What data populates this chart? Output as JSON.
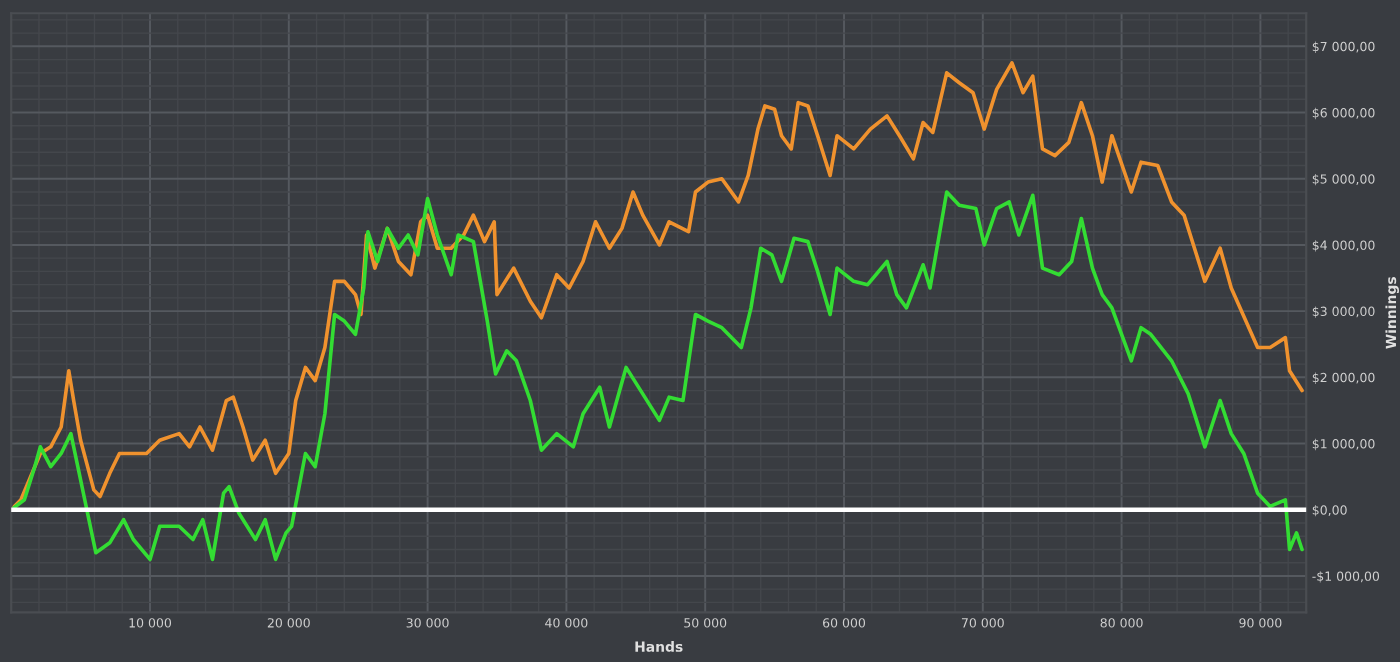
{
  "chart_data": {
    "type": "line",
    "xlabel": "Hands",
    "ylabel": "Winnings",
    "xlim": [
      0,
      93300
    ],
    "ylim": [
      -1550,
      7500
    ],
    "xticks": [
      {
        "value": 10000,
        "label": "10 000"
      },
      {
        "value": 20000,
        "label": "20 000"
      },
      {
        "value": 30000,
        "label": "30 000"
      },
      {
        "value": 40000,
        "label": "40 000"
      },
      {
        "value": 50000,
        "label": "50 000"
      },
      {
        "value": 60000,
        "label": "60 000"
      },
      {
        "value": 70000,
        "label": "70 000"
      },
      {
        "value": 80000,
        "label": "80 000"
      },
      {
        "value": 90000,
        "label": "90 000"
      }
    ],
    "yticks": [
      {
        "value": -1000,
        "label": "-$1 000,00"
      },
      {
        "value": 0,
        "label": "$0,00"
      },
      {
        "value": 1000,
        "label": "$1 000,00"
      },
      {
        "value": 2000,
        "label": "$2 000,00"
      },
      {
        "value": 3000,
        "label": "$3 000,00"
      },
      {
        "value": 4000,
        "label": "$4 000,00"
      },
      {
        "value": 5000,
        "label": "$5 000,00"
      },
      {
        "value": 6000,
        "label": "$6 000,00"
      },
      {
        "value": 7000,
        "label": "$7 000,00"
      }
    ],
    "grid": true,
    "marker": "none",
    "line_style": "solid",
    "ref_lines": [
      {
        "axis": "y",
        "value": 0,
        "color": "#ffffff"
      }
    ],
    "series": [
      {
        "color": "#f0922e",
        "x": [
          0,
          700,
          1700,
          2100,
          2850,
          3600,
          4150,
          4500,
          5000,
          5950,
          6400,
          7100,
          7800,
          9750,
          10700,
          12100,
          12850,
          13600,
          14500,
          15500,
          16000,
          16700,
          17400,
          18300,
          19050,
          20000,
          20500,
          21200,
          21900,
          22600,
          23300,
          24000,
          24800,
          25200,
          25600,
          26200,
          27100,
          27900,
          28800,
          29500,
          30000,
          30700,
          31700,
          32600,
          33300,
          34100,
          34800,
          35000,
          36200,
          37400,
          38200,
          39300,
          40200,
          41200,
          42100,
          43100,
          44000,
          44800,
          45500,
          46700,
          47400,
          48800,
          49300,
          50200,
          51200,
          52400,
          53100,
          53800,
          54300,
          55000,
          55500,
          56200,
          56700,
          57400,
          58100,
          59000,
          59500,
          60700,
          61900,
          63100,
          64000,
          65000,
          65700,
          66400,
          67400,
          68300,
          69300,
          70100,
          71000,
          72100,
          72900,
          73600,
          74300,
          75200,
          76200,
          77100,
          77900,
          78600,
          79300,
          80700,
          81400,
          82600,
          83600,
          84500,
          86000,
          87100,
          87900,
          89800,
          90700,
          91800,
          92100,
          93000
        ],
        "values": [
          0,
          150,
          650,
          850,
          950,
          1250,
          2100,
          1650,
          1050,
          300,
          200,
          550,
          850,
          850,
          1050,
          1150,
          950,
          1250,
          900,
          1650,
          1700,
          1250,
          750,
          1050,
          550,
          850,
          1650,
          2150,
          1950,
          2450,
          3450,
          3450,
          3250,
          2950,
          4150,
          3650,
          4250,
          3750,
          3550,
          4350,
          4450,
          3950,
          3950,
          4150,
          4450,
          4050,
          4350,
          3250,
          3650,
          3150,
          2900,
          3550,
          3350,
          3750,
          4350,
          3950,
          4250,
          4800,
          4450,
          4000,
          4350,
          4200,
          4800,
          4950,
          5000,
          4650,
          5050,
          5750,
          6100,
          6050,
          5650,
          5450,
          6150,
          6100,
          5650,
          5050,
          5650,
          5450,
          5750,
          5950,
          5650,
          5300,
          5850,
          5700,
          6600,
          6450,
          6300,
          5750,
          6350,
          6750,
          6300,
          6550,
          5450,
          5350,
          5550,
          6150,
          5650,
          4950,
          5650,
          4800,
          5250,
          5200,
          4650,
          4450,
          3450,
          3950,
          3350,
          2450,
          2450,
          2600,
          2100,
          1800
        ]
      },
      {
        "color": "#33dd33",
        "x": [
          0,
          950,
          1700,
          2100,
          2850,
          3600,
          4300,
          4800,
          5500,
          6100,
          7100,
          8100,
          8800,
          10000,
          10700,
          12100,
          13100,
          13800,
          14500,
          15300,
          15700,
          16400,
          17600,
          18300,
          19050,
          19800,
          20200,
          21200,
          21900,
          22600,
          23300,
          24000,
          24800,
          25400,
          25700,
          26400,
          27100,
          27900,
          28600,
          29300,
          30000,
          30700,
          31700,
          32200,
          33300,
          34300,
          34900,
          35700,
          36400,
          37400,
          38200,
          39300,
          40500,
          41200,
          42400,
          43100,
          44300,
          45500,
          46700,
          47400,
          48400,
          49300,
          50200,
          51200,
          52600,
          53300,
          54000,
          54800,
          55500,
          56400,
          57400,
          58100,
          59000,
          59500,
          60700,
          61700,
          63100,
          63800,
          64500,
          65700,
          66200,
          67400,
          68300,
          69500,
          70100,
          71000,
          71900,
          72600,
          73600,
          74300,
          75500,
          76400,
          77100,
          77900,
          78600,
          79300,
          80700,
          81400,
          82100,
          83600,
          84800,
          86000,
          87100,
          87900,
          88800,
          89800,
          90700,
          91800,
          92100,
          92600,
          93000
        ],
        "values": [
          0,
          150,
          650,
          950,
          650,
          850,
          1150,
          650,
          -50,
          -650,
          -500,
          -150,
          -450,
          -750,
          -250,
          -250,
          -450,
          -150,
          -750,
          250,
          350,
          -50,
          -450,
          -150,
          -750,
          -350,
          -250,
          850,
          650,
          1450,
          2950,
          2850,
          2650,
          3350,
          4200,
          3750,
          4250,
          3950,
          4150,
          3850,
          4700,
          4150,
          3550,
          4150,
          4050,
          2850,
          2050,
          2400,
          2250,
          1650,
          900,
          1150,
          950,
          1450,
          1850,
          1250,
          2150,
          1750,
          1350,
          1700,
          1650,
          2950,
          2850,
          2750,
          2450,
          3050,
          3950,
          3850,
          3450,
          4100,
          4050,
          3600,
          2950,
          3650,
          3450,
          3400,
          3750,
          3250,
          3050,
          3700,
          3350,
          4800,
          4600,
          4550,
          4000,
          4550,
          4650,
          4150,
          4750,
          3650,
          3550,
          3750,
          4400,
          3650,
          3250,
          3050,
          2250,
          2750,
          2650,
          2250,
          1750,
          950,
          1650,
          1150,
          850,
          250,
          50,
          150,
          -600,
          -350,
          -600
        ]
      }
    ]
  }
}
